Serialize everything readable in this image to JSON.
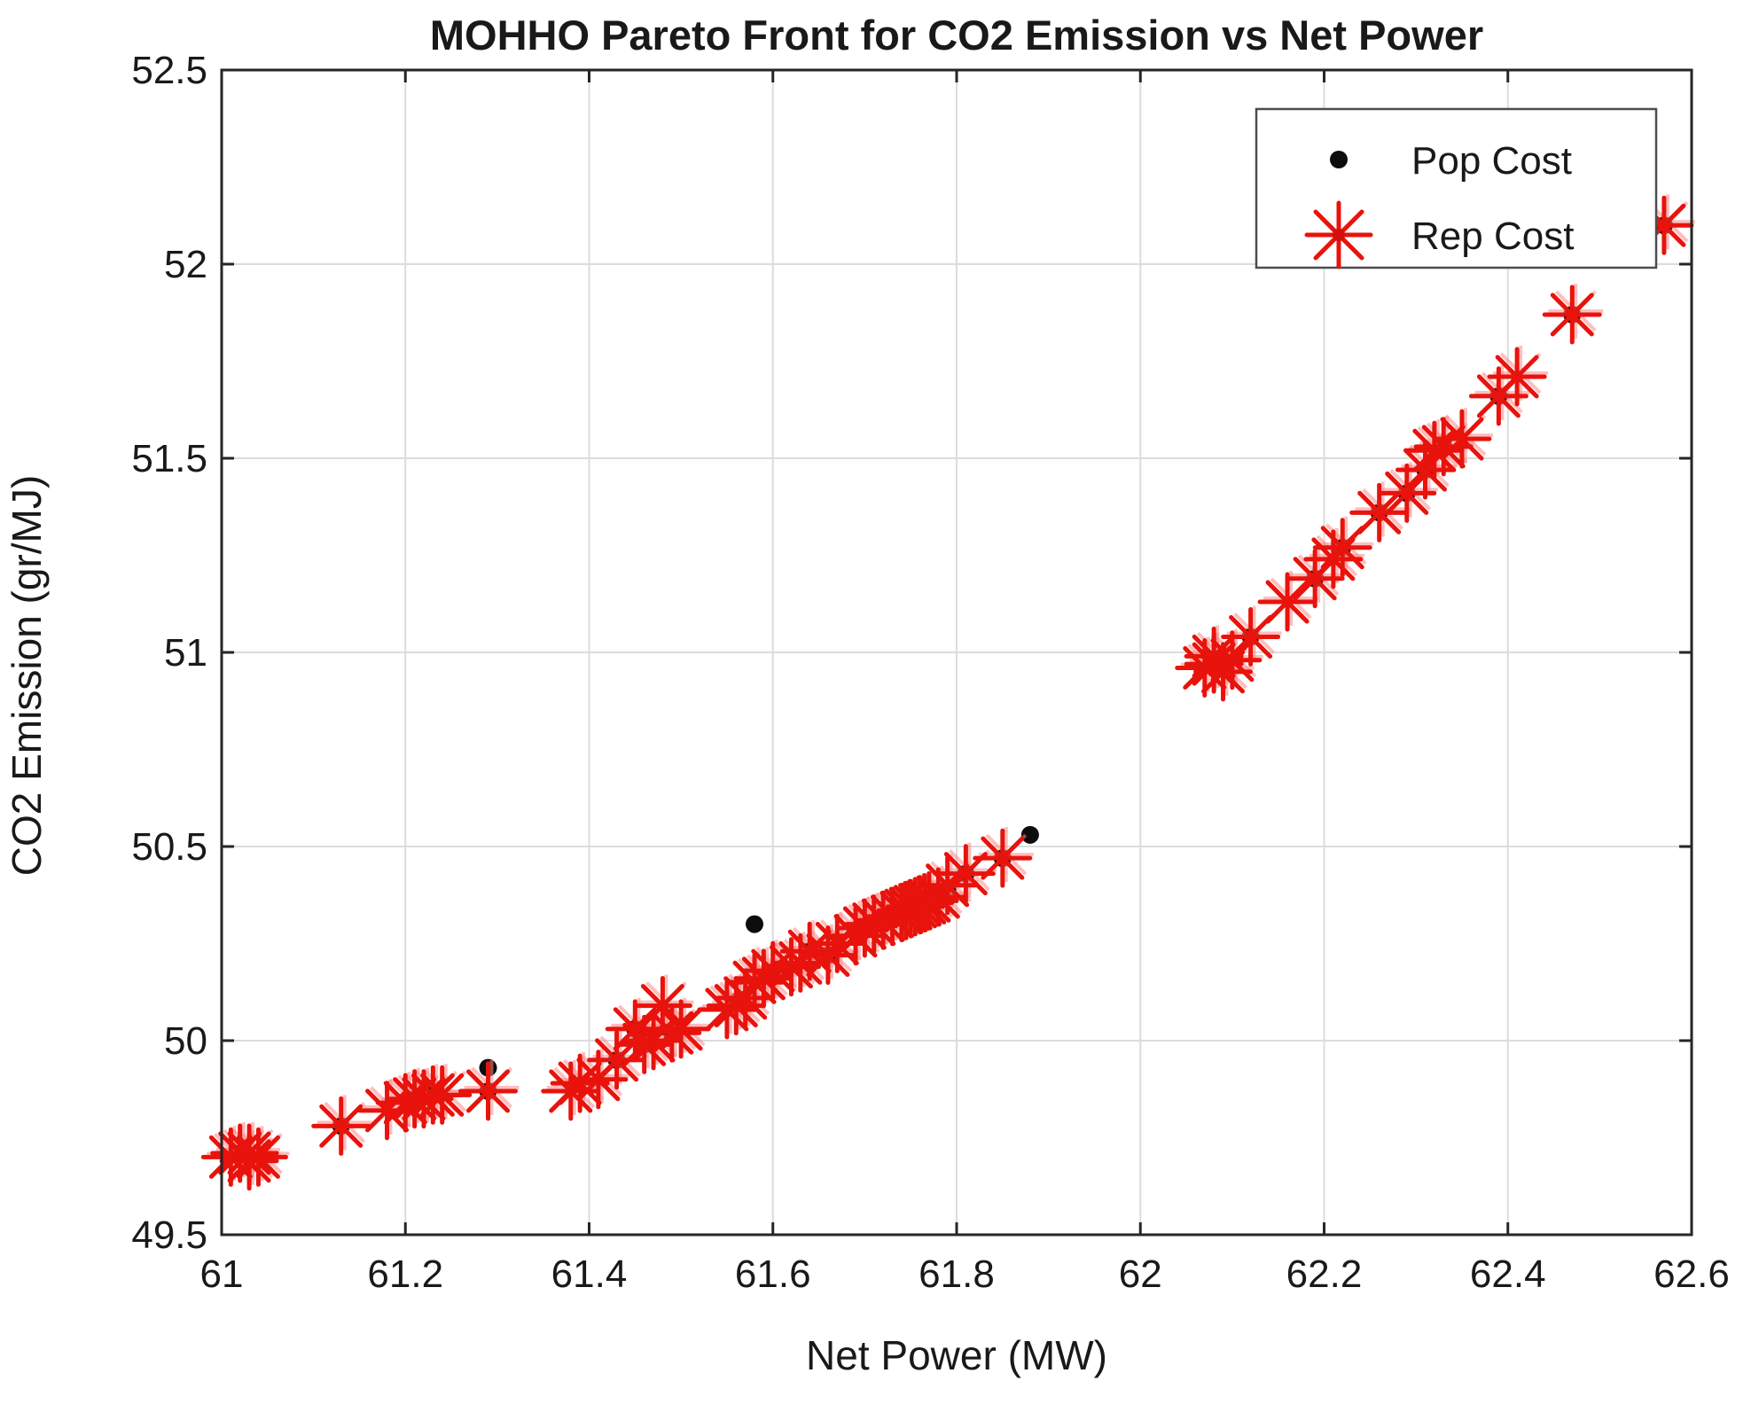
{
  "figure": {
    "background": "#ffffff"
  },
  "chart_data": {
    "type": "scatter",
    "title": "MOHHO Pareto Front for CO2 Emission vs Net Power",
    "xlabel": "Net Power (MW)",
    "ylabel": "CO2 Emission (gr/MJ)",
    "xlim": [
      61,
      62.6
    ],
    "ylim": [
      49.5,
      52.5
    ],
    "xticks": [
      61,
      61.2,
      61.4,
      61.6,
      61.8,
      62,
      62.2,
      62.4,
      62.6
    ],
    "xtick_labels": [
      "61",
      "61.2",
      "61.4",
      "61.6",
      "61.8",
      "62",
      "62.2",
      "62.4",
      "62.6"
    ],
    "yticks": [
      49.5,
      50,
      50.5,
      51,
      51.5,
      52,
      52.5
    ],
    "ytick_labels": [
      "49.5",
      "50",
      "50.5",
      "51",
      "51.5",
      "52",
      "52.5"
    ],
    "grid": true,
    "legend_position": "top-right",
    "series": [
      {
        "name": "Pop Cost",
        "marker": "dot",
        "color": "#0d0d0d",
        "points": [
          [
            61.02,
            49.71
          ],
          [
            61.03,
            49.7
          ],
          [
            61.13,
            49.78
          ],
          [
            61.21,
            49.85
          ],
          [
            61.23,
            49.86
          ],
          [
            61.29,
            49.87
          ],
          [
            61.29,
            49.93
          ],
          [
            61.43,
            49.95
          ],
          [
            61.45,
            50.03
          ],
          [
            61.46,
            49.99
          ],
          [
            61.49,
            50.02
          ],
          [
            61.56,
            50.1
          ],
          [
            61.58,
            50.3
          ],
          [
            61.6,
            50.17
          ],
          [
            61.64,
            50.23
          ],
          [
            61.66,
            50.22
          ],
          [
            61.69,
            50.28
          ],
          [
            61.7,
            50.29
          ],
          [
            61.73,
            50.32
          ],
          [
            61.75,
            50.34
          ],
          [
            61.77,
            50.36
          ],
          [
            61.79,
            50.39
          ],
          [
            61.81,
            50.43
          ],
          [
            61.85,
            50.47
          ],
          [
            61.88,
            50.53
          ],
          [
            62.08,
            50.97
          ],
          [
            62.12,
            51.04
          ],
          [
            62.19,
            51.19
          ],
          [
            62.22,
            51.27
          ],
          [
            62.26,
            51.36
          ],
          [
            62.29,
            51.41
          ],
          [
            62.31,
            51.47
          ],
          [
            62.33,
            51.53
          ],
          [
            62.39,
            51.66
          ],
          [
            62.47,
            51.87
          ],
          [
            62.57,
            52.1
          ]
        ]
      },
      {
        "name": "Rep Cost",
        "marker": "asterisk",
        "color": "#e8130c",
        "shadow_color": "#ff8a8a",
        "points": [
          [
            61.01,
            49.7
          ],
          [
            61.02,
            49.71
          ],
          [
            61.03,
            49.69
          ],
          [
            61.03,
            49.71
          ],
          [
            61.04,
            49.7
          ],
          [
            61.13,
            49.78
          ],
          [
            61.18,
            49.82
          ],
          [
            61.2,
            49.84
          ],
          [
            61.21,
            49.85
          ],
          [
            61.22,
            49.85
          ],
          [
            61.23,
            49.86
          ],
          [
            61.24,
            49.86
          ],
          [
            61.29,
            49.87
          ],
          [
            61.38,
            49.87
          ],
          [
            61.39,
            49.89
          ],
          [
            61.41,
            49.9
          ],
          [
            61.43,
            49.95
          ],
          [
            61.45,
            50.03
          ],
          [
            61.46,
            49.99
          ],
          [
            61.47,
            50.0
          ],
          [
            61.48,
            50.09
          ],
          [
            61.49,
            50.02
          ],
          [
            61.5,
            50.03
          ],
          [
            61.55,
            50.08
          ],
          [
            61.56,
            50.09
          ],
          [
            61.57,
            50.11
          ],
          [
            61.58,
            50.15
          ],
          [
            61.59,
            50.16
          ],
          [
            61.6,
            50.18
          ],
          [
            61.62,
            50.19
          ],
          [
            61.63,
            50.2
          ],
          [
            61.64,
            50.23
          ],
          [
            61.66,
            50.22
          ],
          [
            61.67,
            50.25
          ],
          [
            61.69,
            50.27
          ],
          [
            61.7,
            50.29
          ],
          [
            61.71,
            50.3
          ],
          [
            61.72,
            50.31
          ],
          [
            61.73,
            50.32
          ],
          [
            61.74,
            50.33
          ],
          [
            61.745,
            50.335
          ],
          [
            61.75,
            50.34
          ],
          [
            61.755,
            50.345
          ],
          [
            61.76,
            50.35
          ],
          [
            61.765,
            50.355
          ],
          [
            61.77,
            50.36
          ],
          [
            61.78,
            50.37
          ],
          [
            61.79,
            50.4
          ],
          [
            61.81,
            50.43
          ],
          [
            61.85,
            50.47
          ],
          [
            62.07,
            50.96
          ],
          [
            62.08,
            50.97
          ],
          [
            62.08,
            50.99
          ],
          [
            62.09,
            50.95
          ],
          [
            62.1,
            50.98
          ],
          [
            62.12,
            51.04
          ],
          [
            62.16,
            51.13
          ],
          [
            62.19,
            51.19
          ],
          [
            62.21,
            51.24
          ],
          [
            62.22,
            51.27
          ],
          [
            62.26,
            51.36
          ],
          [
            62.29,
            51.41
          ],
          [
            62.31,
            51.47
          ],
          [
            62.32,
            51.52
          ],
          [
            62.33,
            51.53
          ],
          [
            62.35,
            51.55
          ],
          [
            62.39,
            51.66
          ],
          [
            62.41,
            51.71
          ],
          [
            62.47,
            51.87
          ],
          [
            62.57,
            52.1
          ]
        ]
      }
    ]
  },
  "legend": {
    "pop_label": "Pop Cost",
    "rep_label": "Rep Cost"
  },
  "colors": {
    "grid": "#dcdcdc",
    "axis": "#262626",
    "legend_border": "#4d4d4d",
    "pop": "#0d0d0d",
    "rep": "#e8130c"
  }
}
